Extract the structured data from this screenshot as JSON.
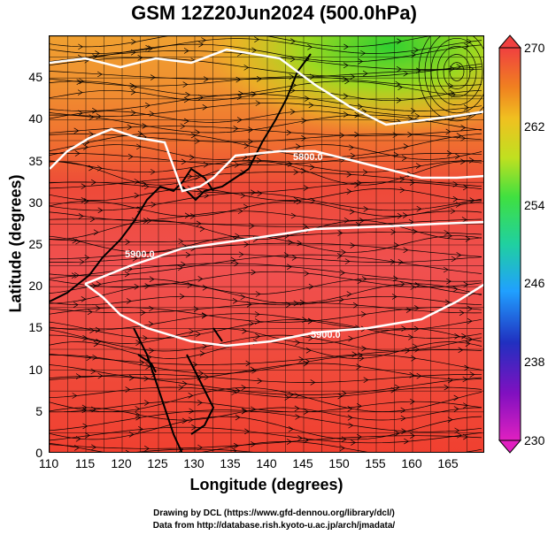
{
  "title": "GSM 12Z20Jun2024 (500.0hPa)",
  "map": {
    "xlabel": "Longitude (degrees)",
    "ylabel": "Latitude  (degrees)",
    "x_ticks": [
      "110",
      "115",
      "120",
      "125",
      "130",
      "135",
      "140",
      "145",
      "150",
      "155",
      "160",
      "165"
    ],
    "y_ticks": [
      "0",
      "5",
      "10",
      "15",
      "20",
      "25",
      "30",
      "35",
      "40",
      "45"
    ],
    "lon_range": [
      110,
      170
    ],
    "lat_range": [
      0,
      50
    ],
    "grid": true,
    "contour_labels": [
      "5900.0",
      "5900.0",
      "5900.0"
    ],
    "contour_label_5800": "5800.0"
  },
  "colorbar": {
    "ticks": [
      "270",
      "262",
      "254",
      "246",
      "238",
      "230"
    ],
    "range": [
      230,
      270
    ],
    "colors": [
      "#e020c0",
      "#2030c0",
      "#20a0ff",
      "#20d0a0",
      "#40e040",
      "#c0e020",
      "#f0c020",
      "#f08020",
      "#f03020",
      "#f04040"
    ]
  },
  "footer": {
    "line1": "Drawing by DCL (https://www.gfd-dennou.org/library/dcl/)",
    "line2": "Data from http://database.rish.kyoto-u.ac.jp/arch/jmadata/"
  }
}
